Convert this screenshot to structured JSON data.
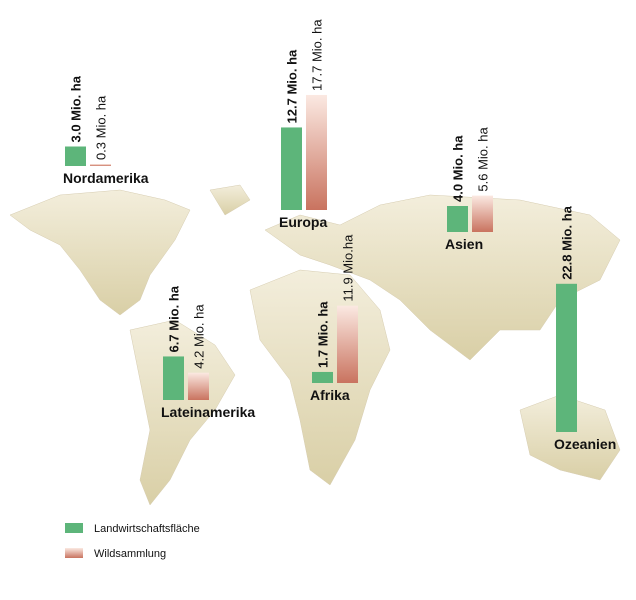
{
  "chart_data": {
    "type": "bar",
    "categories": [
      "Nordamerika",
      "Europa",
      "Asien",
      "Lateinamerika",
      "Afrika",
      "Ozeanien"
    ],
    "series": [
      {
        "name": "Landwirtschaftsfläche",
        "color": "#5db57a",
        "values": [
          3.0,
          12.7,
          4.0,
          6.7,
          1.7,
          22.8
        ],
        "value_labels": [
          "3.0 Mio. ha",
          "12.7 Mio. ha",
          "4.0 Mio. ha",
          "6.7 Mio. ha",
          "1.7 Mio. ha",
          "22.8 Mio. ha"
        ]
      },
      {
        "name": "Wildsammlung",
        "color": "#c9735f",
        "values": [
          0.3,
          17.7,
          5.6,
          4.2,
          11.9,
          null
        ],
        "value_labels": [
          "0.3 Mio. ha",
          "17.7 Mio. ha",
          "5.6 Mio. ha",
          "4.2 Mio. ha",
          "11.9 Mio.ha",
          null
        ]
      }
    ]
  }
}
